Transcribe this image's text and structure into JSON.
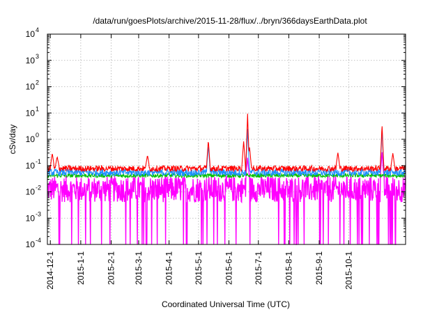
{
  "chart_data": {
    "type": "line",
    "title": "/data/run/goesPlots/archive/2015-11-28/flux/../bryn/366daysEarthData.plot",
    "xlabel": "Coordinated Universal Time (UTC)",
    "ylabel": "cSv/day",
    "yscale": "log",
    "ylim": [
      0.0001,
      10000
    ],
    "xlim": [
      "2014-11-28",
      "2015-11-28"
    ],
    "grid": true,
    "legend": "none",
    "x_ticks": [
      "2014-12-1",
      "2015-1-1",
      "2015-2-1",
      "2015-3-1",
      "2015-4-1",
      "2015-5-1",
      "2015-6-1",
      "2015-7-1",
      "2015-8-1",
      "2015-9-1",
      "2015-10-1"
    ],
    "y_ticks": [
      {
        "value": 0.0001,
        "base": "10",
        "exp": "-4"
      },
      {
        "value": 0.001,
        "base": "10",
        "exp": "-3"
      },
      {
        "value": 0.01,
        "base": "10",
        "exp": "-2"
      },
      {
        "value": 0.1,
        "base": "10",
        "exp": "-1"
      },
      {
        "value": 1,
        "base": "10",
        "exp": "0"
      },
      {
        "value": 10,
        "base": "10",
        "exp": "1"
      },
      {
        "value": 100,
        "base": "10",
        "exp": "2"
      },
      {
        "value": 1000,
        "base": "10",
        "exp": "3"
      },
      {
        "value": 10000,
        "base": "10",
        "exp": "4"
      }
    ],
    "series": [
      {
        "color": "#ff0000",
        "baseline_range": [
          0.06,
          0.1
        ],
        "spikes": [
          {
            "x": "2014-12-3",
            "y": 0.3
          },
          {
            "x": "2014-12-8",
            "y": 0.22
          },
          {
            "x": "2015-3-10",
            "y": 0.25
          },
          {
            "x": "2015-5-11",
            "y": 0.95
          },
          {
            "x": "2015-6-16",
            "y": 0.9
          },
          {
            "x": "2015-6-20",
            "y": 9.5
          },
          {
            "x": "2015-6-22",
            "y": 0.5
          },
          {
            "x": "2015-9-20",
            "y": 0.32
          },
          {
            "x": "2015-11-4",
            "y": 3.6
          },
          {
            "x": "2015-11-15",
            "y": 0.3
          }
        ]
      },
      {
        "color": "#1e90ff",
        "baseline_range": [
          0.04,
          0.075
        ],
        "spikes": [
          {
            "x": "2015-5-11",
            "y": 0.6
          },
          {
            "x": "2015-6-20",
            "y": 2.5
          },
          {
            "x": "2015-11-4",
            "y": 2.2
          }
        ]
      },
      {
        "color": "#00c000",
        "baseline_range": [
          0.035,
          0.05
        ],
        "spikes": []
      },
      {
        "color": "#ff00ff",
        "baseline_range": [
          0.004,
          0.04
        ],
        "dropouts_to": 0.0001,
        "spikes": [
          {
            "x": "2015-6-20",
            "y": 0.2
          },
          {
            "x": "2015-11-4",
            "y": 0.35
          }
        ]
      }
    ]
  }
}
